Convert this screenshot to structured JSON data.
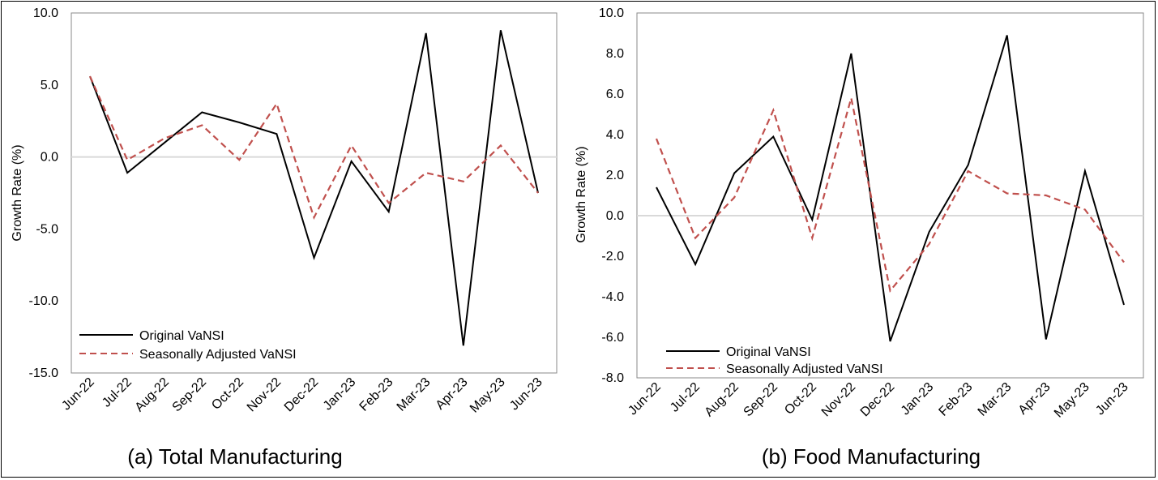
{
  "colors": {
    "original": "#000000",
    "seasonal": "#c0504d",
    "zero_line": "#d9d9d9",
    "plot_border": "#888888"
  },
  "chart_data": [
    {
      "type": "line",
      "caption": "(a)  Total Manufacturing",
      "ylabel": "Growth Rate (%)",
      "ylim": [
        -15,
        10
      ],
      "yticks": [
        10,
        5,
        0,
        -5,
        -10,
        -15
      ],
      "ytick_labels": [
        "10.0",
        "5.0",
        "0.0",
        "-5.0",
        "-10.0",
        "-15.0"
      ],
      "categories": [
        "Jun-22",
        "Jul-22",
        "Aug-22",
        "Sep-22",
        "Oct-22",
        "Nov-22",
        "Dec-22",
        "Jan-23",
        "Feb-23",
        "Mar-23",
        "Apr-23",
        "May-23",
        "Jun-23"
      ],
      "series": [
        {
          "name": "Original VaNSI",
          "style": "solid",
          "values": [
            5.6,
            -1.1,
            1.0,
            3.1,
            2.4,
            1.6,
            -7.0,
            -0.3,
            -3.8,
            8.6,
            -13.1,
            8.8,
            -2.5
          ]
        },
        {
          "name": "Seasonally Adjusted VaNSI",
          "style": "dashed",
          "values": [
            5.6,
            -0.2,
            1.3,
            2.2,
            -0.2,
            3.7,
            -4.2,
            0.8,
            -3.2,
            -1.1,
            -1.7,
            0.8,
            -2.5
          ]
        }
      ],
      "legend_position": "bottom-left",
      "grid": false
    },
    {
      "type": "line",
      "caption": "(b) Food Manufacturing",
      "ylabel": "Growth Rate (%)",
      "ylim": [
        -8,
        10
      ],
      "yticks": [
        10,
        8,
        6,
        4,
        2,
        0,
        -2,
        -4,
        -6,
        -8
      ],
      "ytick_labels": [
        "10.0",
        "8.0",
        "6.0",
        "4.0",
        "2.0",
        "0.0",
        "-2.0",
        "-4.0",
        "-6.0",
        "-8.0"
      ],
      "categories": [
        "Jun-22",
        "Jul-22",
        "Aug-22",
        "Sep-22",
        "Oct-22",
        "Nov-22",
        "Dec-22",
        "Jan-23",
        "Feb-23",
        "Mar-23",
        "Apr-23",
        "May-23",
        "Jun-23"
      ],
      "series": [
        {
          "name": "Original VaNSI",
          "style": "solid",
          "values": [
            1.4,
            -2.4,
            2.1,
            3.9,
            -0.2,
            8.0,
            -6.2,
            -0.8,
            2.5,
            8.9,
            -6.1,
            2.2,
            -4.4
          ]
        },
        {
          "name": "Seasonally Adjusted VaNSI",
          "style": "dashed",
          "values": [
            3.8,
            -1.1,
            0.9,
            5.2,
            -1.1,
            5.8,
            -3.7,
            -1.4,
            2.2,
            1.1,
            1.0,
            0.3,
            -2.3
          ]
        }
      ],
      "legend_position": "bottom-left",
      "grid": false
    }
  ]
}
